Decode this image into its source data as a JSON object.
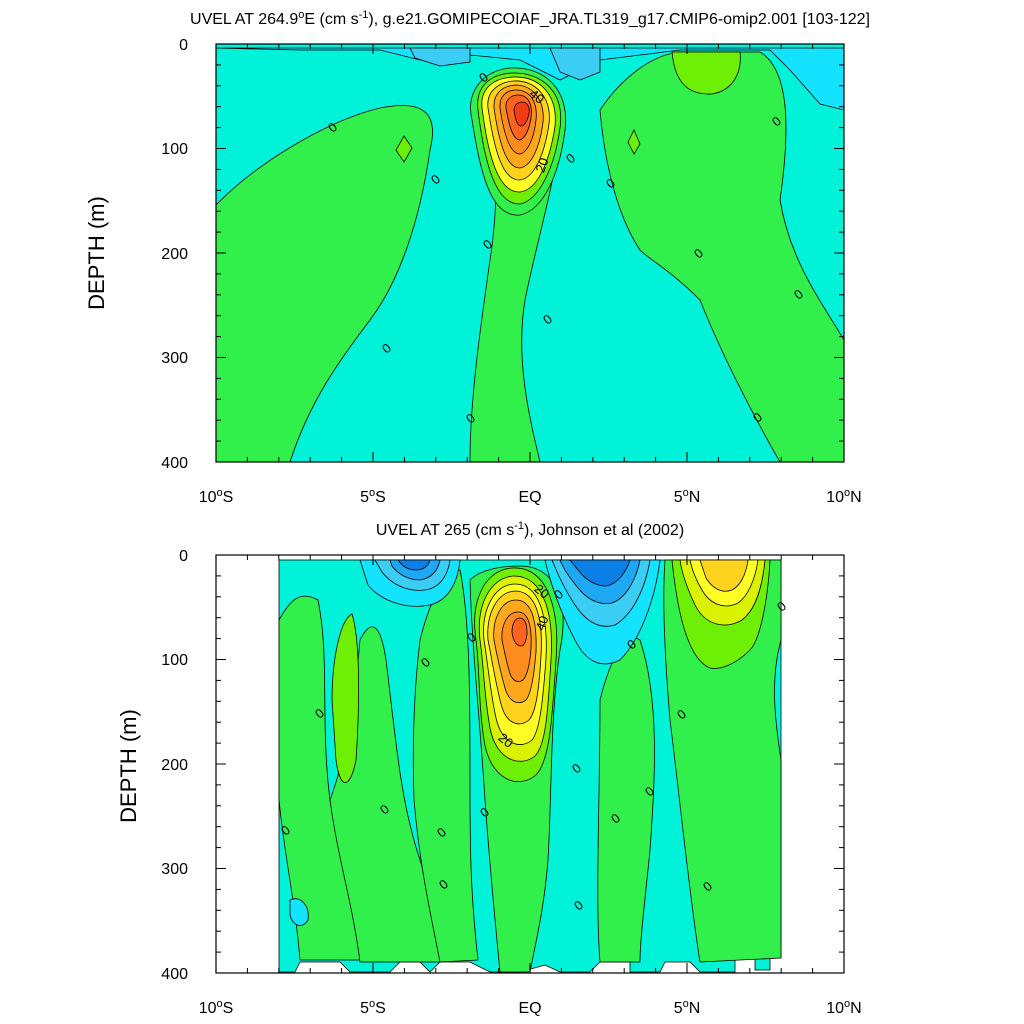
{
  "chart_data": [
    {
      "type": "contour",
      "title_pre": "UVEL AT 264.9",
      "title_sup1": "o",
      "title_mid": "E (cm s",
      "title_sup2": "-1",
      "title_post": "), g.e21.GOMIPECOIAF_JRA.TL319_g17.CMIP6-omip2.001 [103-122]",
      "ylabel": "DEPTH (m)",
      "xlim": [
        -10,
        10
      ],
      "ylim": [
        0,
        400
      ],
      "y_inverted": true,
      "xticks": [
        {
          "pre": "10",
          "sup": "o",
          "post": "S"
        },
        {
          "pre": "5",
          "sup": "o",
          "post": "S"
        },
        {
          "pre": "EQ",
          "sup": "",
          "post": ""
        },
        {
          "pre": "5",
          "sup": "o",
          "post": "N"
        },
        {
          "pre": "10",
          "sup": "o",
          "post": "N"
        }
      ],
      "yticks": [
        "0",
        "100",
        "200",
        "300",
        "400"
      ],
      "contour_labels": [
        "0",
        "0",
        "0",
        "0",
        "0",
        "0",
        "0",
        "0",
        "0",
        "0",
        "0",
        "0",
        "0",
        "0",
        "40",
        "20"
      ],
      "max_core": {
        "lon": 0,
        "depth": 70
      }
    },
    {
      "type": "contour",
      "title_pre": "UVEL AT 265 (cm s",
      "title_sup": "-1",
      "title_post": "), Johnson et al (2002)",
      "ylabel": "DEPTH (m)",
      "xlim": [
        -10,
        10
      ],
      "ylim": [
        0,
        400
      ],
      "y_inverted": true,
      "xticks": [
        {
          "pre": "10",
          "sup": "o",
          "post": "S"
        },
        {
          "pre": "5",
          "sup": "o",
          "post": "S"
        },
        {
          "pre": "EQ",
          "sup": "",
          "post": ""
        },
        {
          "pre": "5",
          "sup": "o",
          "post": "N"
        },
        {
          "pre": "10",
          "sup": "o",
          "post": "N"
        }
      ],
      "yticks": [
        "0",
        "100",
        "200",
        "300",
        "400"
      ],
      "contour_labels": [
        "0",
        "0",
        "0",
        "0",
        "0",
        "0",
        "0",
        "0",
        "0",
        "0",
        "0",
        "0",
        "0",
        "0",
        "0",
        "0",
        "0",
        "0",
        "0",
        "20",
        "40",
        "20"
      ],
      "data_lon_range": [
        -8,
        8
      ],
      "max_core": {
        "lon": 0,
        "depth": 65
      }
    }
  ],
  "colors": {
    "bg": "#ffffff",
    "ink": "#000000",
    "neg4": "#0a7fe6",
    "neg3": "#1ea7f2",
    "neg2": "#3ccdf5",
    "neg1": "#14e3ff",
    "zero_neg": "#00f2d9",
    "zero_pos": "#32f04c",
    "pos1": "#6ef006",
    "pos2": "#d8f200",
    "pos3": "#ffff26",
    "pos4": "#ffd21e",
    "pos5": "#ffa81e",
    "pos6": "#ff8c1e",
    "pos7": "#ff641e",
    "pos8": "#f23c14"
  }
}
